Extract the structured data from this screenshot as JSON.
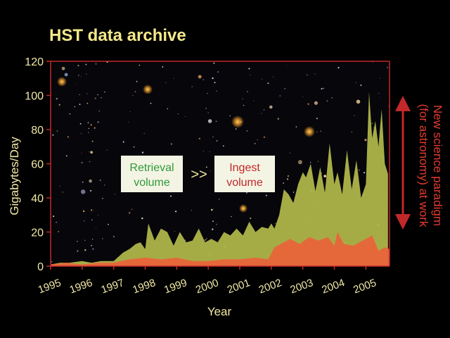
{
  "colors": {
    "title": "#f3e98a",
    "axis_text": "#f1e9a6",
    "frame": "#c0282a",
    "retrieval": "#aeb54a",
    "ingest": "#e8643a",
    "retrieval_text": "#2f9a3a",
    "ingest_text": "#c0282a",
    "paradigm_text": "#e23b2f",
    "callout_bg": "#f4f4e4"
  },
  "chart_data": {
    "type": "area",
    "title": "HST data archive",
    "xlabel": "Year",
    "ylabel": "Gigabytes/Day",
    "xlim": [
      1995.0,
      2005.75
    ],
    "ylim": [
      0,
      120
    ],
    "yticks": [
      0,
      20,
      40,
      60,
      80,
      100,
      120
    ],
    "xticks": [
      "1995",
      "1996",
      "1997",
      "1998",
      "1999",
      "2000",
      "2001",
      "2002",
      "2003",
      "2004",
      "2005"
    ],
    "grid": false,
    "series": [
      {
        "name": "Retrieval volume",
        "x": [
          1995.0,
          1995.3,
          1995.6,
          1996.0,
          1996.3,
          1996.6,
          1997.0,
          1997.3,
          1997.5,
          1997.7,
          1997.85,
          1998.0,
          1998.1,
          1998.3,
          1998.5,
          1998.7,
          1998.9,
          1999.1,
          1999.3,
          1999.5,
          1999.7,
          1999.9,
          2000.1,
          2000.3,
          2000.5,
          2000.7,
          2000.9,
          2001.1,
          2001.3,
          2001.5,
          2001.7,
          2001.9,
          2002.0,
          2002.1,
          2002.25,
          2002.4,
          2002.55,
          2002.7,
          2002.85,
          2003.0,
          2003.1,
          2003.25,
          2003.4,
          2003.55,
          2003.7,
          2003.85,
          2004.0,
          2004.1,
          2004.25,
          2004.4,
          2004.55,
          2004.7,
          2004.85,
          2005.0,
          2005.1,
          2005.2,
          2005.3,
          2005.4,
          2005.5,
          2005.6,
          2005.7
        ],
        "values": [
          1,
          2,
          2,
          3,
          2,
          3,
          3,
          8,
          10,
          13,
          14,
          10,
          25,
          15,
          22,
          20,
          12,
          20,
          14,
          15,
          22,
          14,
          16,
          14,
          20,
          18,
          22,
          18,
          26,
          20,
          23,
          22,
          25,
          22,
          30,
          45,
          42,
          37,
          48,
          55,
          52,
          60,
          44,
          58,
          43,
          72,
          48,
          55,
          42,
          68,
          45,
          62,
          40,
          48,
          102,
          75,
          85,
          70,
          92,
          60,
          54
        ]
      },
      {
        "name": "Ingest volume",
        "x": [
          1995.0,
          1995.5,
          1996.0,
          1996.5,
          1997.0,
          1997.5,
          1998.0,
          1998.5,
          1999.0,
          1999.5,
          2000.0,
          2000.5,
          2001.0,
          2001.5,
          2001.9,
          2002.1,
          2002.3,
          2002.6,
          2002.9,
          2003.2,
          2003.5,
          2003.8,
          2004.0,
          2004.1,
          2004.3,
          2004.6,
          2004.9,
          2005.2,
          2005.4,
          2005.6,
          2005.75
        ],
        "values": [
          1,
          2,
          1,
          2,
          2,
          4,
          5,
          4,
          5,
          3,
          3,
          4,
          4,
          5,
          4,
          11,
          13,
          16,
          13,
          17,
          15,
          17,
          12,
          20,
          13,
          12,
          15,
          18,
          9,
          11,
          10
        ]
      }
    ],
    "annotations": {
      "retrieval_label": [
        "Retrieval",
        "volume"
      ],
      "compare": ">>",
      "ingest_label": [
        "Ingest",
        "volume"
      ],
      "paradigm_label": [
        "New science paradigm",
        "(for astronomy) at work"
      ]
    }
  }
}
